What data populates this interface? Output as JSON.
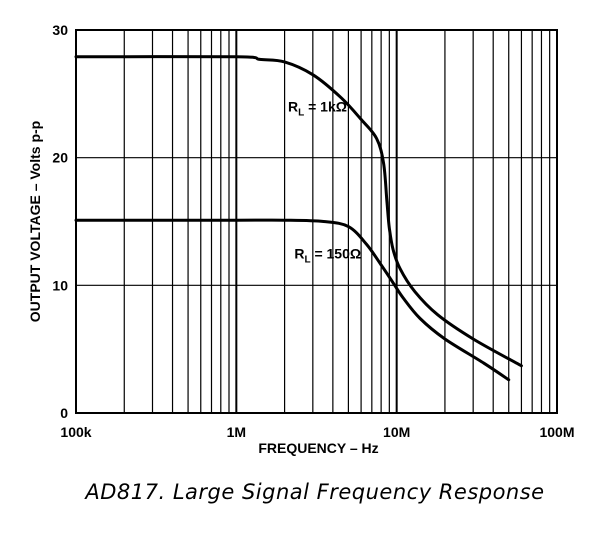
{
  "chart_data": {
    "type": "line",
    "caption": "AD817.  Large Signal Frequency Response",
    "xlabel": "FREQUENCY – Hz",
    "ylabel": "OUTPUT VOLTAGE – Volts p-p",
    "xscale": "log",
    "xlim": [
      100000,
      100000000
    ],
    "ylim": [
      0,
      30
    ],
    "grid": true,
    "x_tick_labels": [
      "100k",
      "1M",
      "10M",
      "100M"
    ],
    "y_tick_labels": [
      "0",
      "10",
      "20",
      "30"
    ],
    "series": [
      {
        "name": "1kΩ",
        "label_prefix": "R",
        "label_sub": "L",
        "label_rest": " = 1kΩ",
        "x": [
          100000,
          1000000,
          1400000,
          2000000,
          3000000,
          4500000,
          6000000,
          7500000,
          8300000,
          8700000,
          9000000,
          9500000,
          10500000,
          13000000,
          18000000,
          30000000,
          60000000
        ],
        "y": [
          27.9,
          27.9,
          27.7,
          27.5,
          26.5,
          24.7,
          23.0,
          21.5,
          19.5,
          16.5,
          14.5,
          12.8,
          11.3,
          9.5,
          7.7,
          5.8,
          3.7
        ]
      },
      {
        "name": "150Ω",
        "label_prefix": "R",
        "label_sub": "L",
        "label_rest": " = 150Ω",
        "x": [
          100000,
          1000000,
          2000000,
          3500000,
          5000000,
          6500000,
          8000000,
          9500000,
          11000000,
          14000000,
          20000000,
          35000000,
          50000000
        ],
        "y": [
          15.1,
          15.1,
          15.1,
          15.0,
          14.6,
          13.2,
          11.6,
          10.2,
          9.0,
          7.4,
          5.8,
          3.9,
          2.6
        ]
      }
    ]
  }
}
